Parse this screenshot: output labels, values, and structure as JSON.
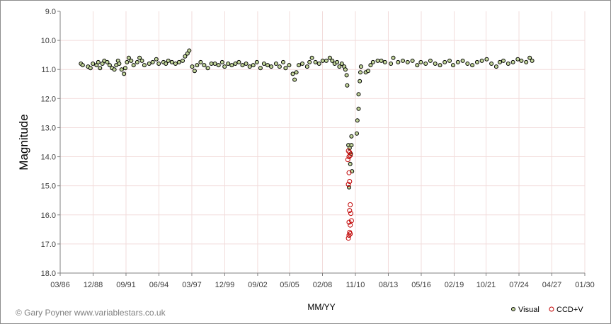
{
  "credit": "© Gary Poyner  www.variablestars.co.uk",
  "chart_data": {
    "type": "scatter",
    "title": "",
    "xlabel": "MM/YY",
    "ylabel": "Magnitude",
    "x_ticks": [
      "03/86",
      "12/88",
      "09/91",
      "06/94",
      "03/97",
      "12/99",
      "09/02",
      "05/05",
      "02/08",
      "11/10",
      "08/13",
      "05/16",
      "02/19",
      "10/21",
      "07/24",
      "04/27",
      "01/30"
    ],
    "xlim": [
      "03/86",
      "01/30"
    ],
    "y_ticks": [
      "9.0",
      "10.0",
      "11.0",
      "12.0",
      "13.0",
      "14.0",
      "15.0",
      "16.0",
      "17.0",
      "18.0"
    ],
    "ylim": [
      9.0,
      18.0
    ],
    "y_inverted": true,
    "grid": true,
    "legend_position": "bottom-right",
    "colors": {
      "visual_fill": "#c3d69b",
      "visual_edge": "#000000",
      "ccd_edge": "#c00000",
      "grid": "#f2dcdb",
      "axis": "#808080"
    },
    "series": [
      {
        "name": "Visual",
        "marker": "filled-circle",
        "points": [
          [
            1987.9,
            10.8
          ],
          [
            1988.05,
            10.85
          ],
          [
            1988.5,
            10.9
          ],
          [
            1988.7,
            10.95
          ],
          [
            1988.9,
            10.8
          ],
          [
            1989.2,
            10.85
          ],
          [
            1989.35,
            10.75
          ],
          [
            1989.5,
            10.95
          ],
          [
            1989.7,
            10.8
          ],
          [
            1989.85,
            10.7
          ],
          [
            1990.1,
            10.75
          ],
          [
            1990.3,
            10.85
          ],
          [
            1990.5,
            10.95
          ],
          [
            1990.7,
            11.0
          ],
          [
            1990.85,
            10.85
          ],
          [
            1991.0,
            10.7
          ],
          [
            1991.1,
            10.8
          ],
          [
            1991.3,
            11.0
          ],
          [
            1991.5,
            11.15
          ],
          [
            1991.6,
            10.95
          ],
          [
            1991.75,
            10.75
          ],
          [
            1991.9,
            10.6
          ],
          [
            1992.1,
            10.7
          ],
          [
            1992.3,
            10.85
          ],
          [
            1992.6,
            10.75
          ],
          [
            1992.8,
            10.6
          ],
          [
            1993.0,
            10.7
          ],
          [
            1993.2,
            10.85
          ],
          [
            1993.6,
            10.8
          ],
          [
            1993.9,
            10.75
          ],
          [
            1994.2,
            10.65
          ],
          [
            1994.4,
            10.8
          ],
          [
            1994.8,
            10.75
          ],
          [
            1995.0,
            10.8
          ],
          [
            1995.2,
            10.7
          ],
          [
            1995.5,
            10.75
          ],
          [
            1995.8,
            10.8
          ],
          [
            1996.1,
            10.75
          ],
          [
            1996.4,
            10.7
          ],
          [
            1996.6,
            10.55
          ],
          [
            1996.8,
            10.45
          ],
          [
            1996.95,
            10.35
          ],
          [
            1997.2,
            10.9
          ],
          [
            1997.4,
            11.05
          ],
          [
            1997.6,
            10.85
          ],
          [
            1997.9,
            10.75
          ],
          [
            1998.2,
            10.85
          ],
          [
            1998.5,
            10.95
          ],
          [
            1998.8,
            10.8
          ],
          [
            1999.1,
            10.8
          ],
          [
            1999.4,
            10.85
          ],
          [
            1999.7,
            10.75
          ],
          [
            1999.9,
            10.9
          ],
          [
            2000.2,
            10.8
          ],
          [
            2000.5,
            10.85
          ],
          [
            2000.8,
            10.8
          ],
          [
            2001.1,
            10.75
          ],
          [
            2001.4,
            10.85
          ],
          [
            2001.7,
            10.8
          ],
          [
            2002.0,
            10.9
          ],
          [
            2002.3,
            10.85
          ],
          [
            2002.6,
            10.75
          ],
          [
            2002.9,
            10.95
          ],
          [
            2003.2,
            10.8
          ],
          [
            2003.5,
            10.85
          ],
          [
            2003.8,
            10.9
          ],
          [
            2004.2,
            10.8
          ],
          [
            2004.5,
            10.9
          ],
          [
            2004.8,
            10.75
          ],
          [
            2005.0,
            10.95
          ],
          [
            2005.3,
            10.85
          ],
          [
            2005.6,
            11.15
          ],
          [
            2005.75,
            11.35
          ],
          [
            2005.9,
            11.1
          ],
          [
            2006.1,
            10.85
          ],
          [
            2006.4,
            10.8
          ],
          [
            2006.8,
            10.9
          ],
          [
            2007.0,
            10.75
          ],
          [
            2007.2,
            10.6
          ],
          [
            2007.5,
            10.75
          ],
          [
            2007.8,
            10.8
          ],
          [
            2008.1,
            10.7
          ],
          [
            2008.4,
            10.7
          ],
          [
            2008.7,
            10.6
          ],
          [
            2008.9,
            10.7
          ],
          [
            2009.1,
            10.8
          ],
          [
            2009.3,
            10.75
          ],
          [
            2009.5,
            10.9
          ],
          [
            2009.7,
            10.8
          ],
          [
            2009.9,
            10.9
          ],
          [
            2010.0,
            11.0
          ],
          [
            2010.1,
            11.2
          ],
          [
            2010.15,
            11.55
          ],
          [
            2010.25,
            13.6
          ],
          [
            2010.35,
            13.7
          ],
          [
            2010.45,
            13.9
          ],
          [
            2010.5,
            13.6
          ],
          [
            2010.55,
            14.5
          ],
          [
            2010.4,
            14.25
          ],
          [
            2010.3,
            15.05
          ],
          [
            2010.5,
            13.3
          ],
          [
            2010.95,
            13.2
          ],
          [
            2011.0,
            12.75
          ],
          [
            2011.1,
            12.35
          ],
          [
            2011.1,
            11.85
          ],
          [
            2011.2,
            11.4
          ],
          [
            2011.25,
            11.1
          ],
          [
            2011.3,
            10.9
          ],
          [
            2011.7,
            11.1
          ],
          [
            2011.9,
            11.05
          ],
          [
            2012.1,
            10.85
          ],
          [
            2012.3,
            10.75
          ],
          [
            2012.7,
            10.7
          ],
          [
            2013.0,
            10.7
          ],
          [
            2013.3,
            10.75
          ],
          [
            2013.8,
            10.8
          ],
          [
            2014.0,
            10.6
          ],
          [
            2014.4,
            10.75
          ],
          [
            2014.8,
            10.7
          ],
          [
            2015.2,
            10.75
          ],
          [
            2015.6,
            10.7
          ],
          [
            2016.0,
            10.85
          ],
          [
            2016.3,
            10.75
          ],
          [
            2016.7,
            10.8
          ],
          [
            2017.1,
            10.7
          ],
          [
            2017.5,
            10.8
          ],
          [
            2017.9,
            10.85
          ],
          [
            2018.3,
            10.75
          ],
          [
            2018.7,
            10.7
          ],
          [
            2019.0,
            10.85
          ],
          [
            2019.4,
            10.75
          ],
          [
            2019.8,
            10.7
          ],
          [
            2020.2,
            10.8
          ],
          [
            2020.6,
            10.85
          ],
          [
            2021.0,
            10.75
          ],
          [
            2021.4,
            10.7
          ],
          [
            2021.8,
            10.65
          ],
          [
            2022.2,
            10.8
          ],
          [
            2022.6,
            10.9
          ],
          [
            2022.9,
            10.75
          ],
          [
            2023.2,
            10.7
          ],
          [
            2023.6,
            10.8
          ],
          [
            2024.0,
            10.75
          ],
          [
            2024.4,
            10.65
          ],
          [
            2024.7,
            10.7
          ],
          [
            2025.1,
            10.75
          ],
          [
            2025.4,
            10.6
          ],
          [
            2025.6,
            10.7
          ]
        ]
      },
      {
        "name": "CCD+V",
        "marker": "open-circle",
        "points": [
          [
            2010.25,
            13.8
          ],
          [
            2010.3,
            14.0
          ],
          [
            2010.35,
            13.85
          ],
          [
            2010.2,
            14.1
          ],
          [
            2010.4,
            13.95
          ],
          [
            2010.3,
            14.55
          ],
          [
            2010.35,
            14.85
          ],
          [
            2010.25,
            14.95
          ],
          [
            2010.4,
            15.65
          ],
          [
            2010.35,
            15.85
          ],
          [
            2010.45,
            15.95
          ],
          [
            2010.3,
            16.25
          ],
          [
            2010.5,
            16.2
          ],
          [
            2010.4,
            16.35
          ],
          [
            2010.35,
            16.6
          ],
          [
            2010.3,
            16.7
          ],
          [
            2010.25,
            16.8
          ],
          [
            2010.4,
            16.65
          ]
        ]
      }
    ]
  }
}
